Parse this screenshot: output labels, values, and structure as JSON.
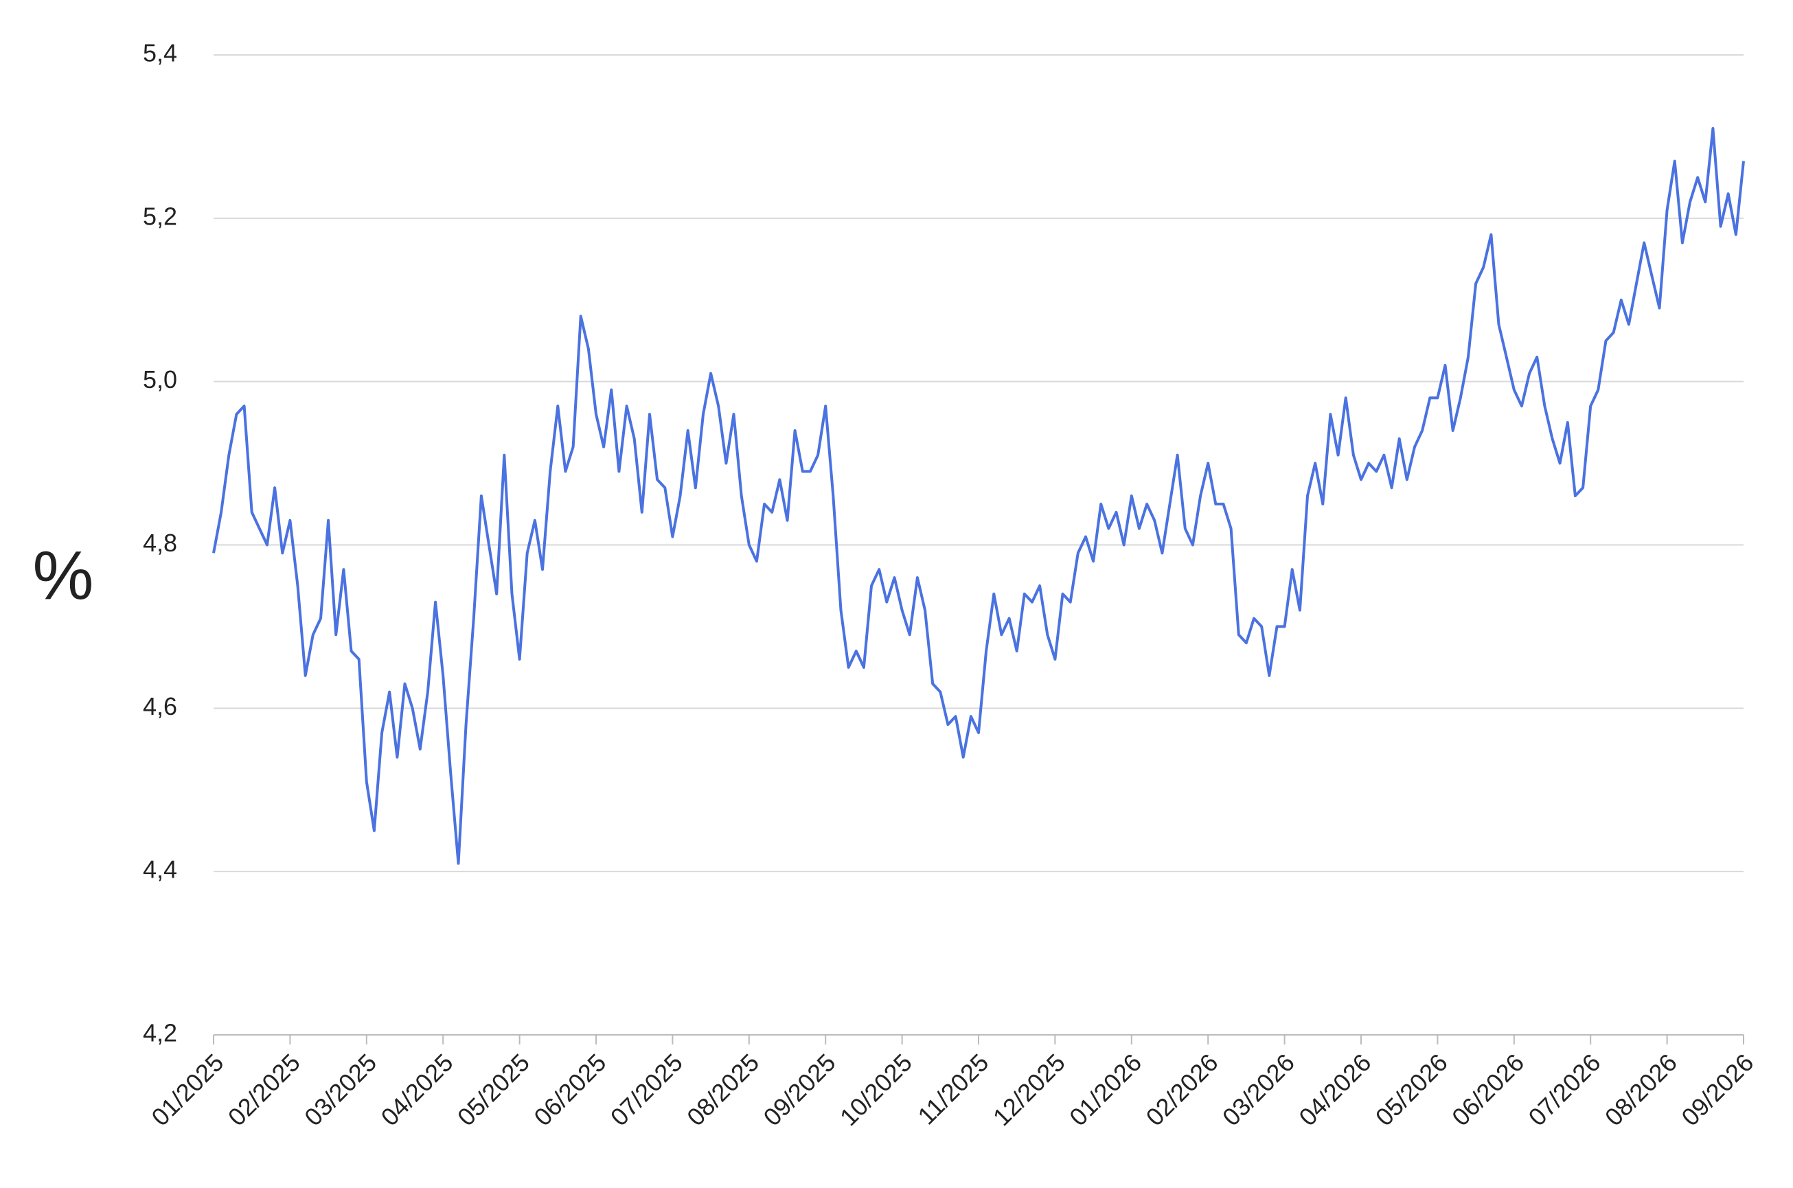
{
  "chart_data": {
    "type": "line",
    "ylabel": "%",
    "color": "#4a72e0",
    "grid": true,
    "ylim": [
      4.2,
      5.4
    ],
    "yticks": [
      {
        "value": 4.2,
        "label": "4,2"
      },
      {
        "value": 4.4,
        "label": "4,4"
      },
      {
        "value": 4.6,
        "label": "4,6"
      },
      {
        "value": 4.8,
        "label": "4,8"
      },
      {
        "value": 5.0,
        "label": "5,0"
      },
      {
        "value": 5.2,
        "label": "5,2"
      },
      {
        "value": 5.4,
        "label": "5,4"
      }
    ],
    "categories": [
      "01/2025",
      null,
      null,
      null,
      null,
      null,
      null,
      null,
      null,
      null,
      "02/2025",
      null,
      null,
      null,
      null,
      null,
      null,
      null,
      null,
      null,
      "03/2025",
      null,
      null,
      null,
      null,
      null,
      null,
      null,
      null,
      null,
      "04/2025",
      null,
      null,
      null,
      null,
      null,
      null,
      null,
      null,
      null,
      "05/2025",
      null,
      null,
      null,
      null,
      null,
      null,
      null,
      null,
      null,
      "06/2025",
      null,
      null,
      null,
      null,
      null,
      null,
      null,
      null,
      null,
      "07/2025",
      null,
      null,
      null,
      null,
      null,
      null,
      null,
      null,
      null,
      "08/2025",
      null,
      null,
      null,
      null,
      null,
      null,
      null,
      null,
      null,
      "09/2025",
      null,
      null,
      null,
      null,
      null,
      null,
      null,
      null,
      null,
      "10/2025",
      null,
      null,
      null,
      null,
      null,
      null,
      null,
      null,
      null,
      "11/2025",
      null,
      null,
      null,
      null,
      null,
      null,
      null,
      null,
      null,
      "12/2025",
      null,
      null,
      null,
      null,
      null,
      null,
      null,
      null,
      null,
      "01/2026",
      null,
      null,
      null,
      null,
      null,
      null,
      null,
      null,
      null,
      "02/2026",
      null,
      null,
      null,
      null,
      null,
      null,
      null,
      null,
      null,
      "03/2026",
      null,
      null,
      null,
      null,
      null,
      null,
      null,
      null,
      null,
      "04/2026",
      null,
      null,
      null,
      null,
      null,
      null,
      null,
      null,
      null,
      "05/2026",
      null,
      null,
      null,
      null,
      null,
      null,
      null,
      null,
      null,
      "06/2026",
      null,
      null,
      null,
      null,
      null,
      null,
      null,
      null,
      null,
      "07/2026",
      null,
      null,
      null,
      null,
      null,
      null,
      null,
      null,
      null,
      "08/2026",
      null,
      null,
      null,
      null,
      null,
      null,
      null,
      null,
      null,
      "09/2026"
    ],
    "values": [
      4.79,
      4.84,
      4.91,
      4.96,
      4.97,
      4.84,
      4.82,
      4.8,
      4.87,
      4.79,
      4.83,
      4.75,
      4.64,
      4.69,
      4.71,
      4.83,
      4.69,
      4.77,
      4.67,
      4.66,
      4.51,
      4.45,
      4.57,
      4.62,
      4.54,
      4.63,
      4.6,
      4.55,
      4.62,
      4.73,
      4.64,
      4.52,
      4.41,
      4.58,
      4.71,
      4.86,
      4.8,
      4.74,
      4.91,
      4.74,
      4.66,
      4.79,
      4.83,
      4.77,
      4.89,
      4.97,
      4.89,
      4.92,
      5.08,
      5.04,
      4.96,
      4.92,
      4.99,
      4.89,
      4.97,
      4.93,
      4.84,
      4.96,
      4.88,
      4.87,
      4.81,
      4.86,
      4.94,
      4.87,
      4.96,
      5.01,
      4.97,
      4.9,
      4.96,
      4.86,
      4.8,
      4.78,
      4.85,
      4.84,
      4.88,
      4.83,
      4.94,
      4.89,
      4.89,
      4.91,
      4.97,
      4.86,
      4.72,
      4.65,
      4.67,
      4.65,
      4.75,
      4.77,
      4.73,
      4.76,
      4.72,
      4.69,
      4.76,
      4.72,
      4.63,
      4.62,
      4.58,
      4.59,
      4.54,
      4.59,
      4.57,
      4.67,
      4.74,
      4.69,
      4.71,
      4.67,
      4.74,
      4.73,
      4.75,
      4.69,
      4.66,
      4.74,
      4.73,
      4.79,
      4.81,
      4.78,
      4.85,
      4.82,
      4.84,
      4.8,
      4.86,
      4.82,
      4.85,
      4.83,
      4.79,
      4.85,
      4.91,
      4.82,
      4.8,
      4.86,
      4.9,
      4.85,
      4.85,
      4.82,
      4.69,
      4.68,
      4.71,
      4.7,
      4.64,
      4.7,
      4.7,
      4.77,
      4.72,
      4.86,
      4.9,
      4.85,
      4.96,
      4.91,
      4.98,
      4.91,
      4.88,
      4.9,
      4.89,
      4.91,
      4.87,
      4.93,
      4.88,
      4.92,
      4.94,
      4.98,
      4.98,
      5.02,
      4.94,
      4.98,
      5.03,
      5.12,
      5.14,
      5.18,
      5.07,
      5.03,
      4.99,
      4.97,
      5.01,
      5.03,
      4.97,
      4.93,
      4.9,
      4.95,
      4.86,
      4.87,
      4.97,
      4.99,
      5.05,
      5.06,
      5.1,
      5.07,
      5.12,
      5.17,
      5.13,
      5.09,
      5.21,
      5.27,
      5.17,
      5.22,
      5.25,
      5.22,
      5.31,
      5.19,
      5.23,
      5.18,
      5.27
    ]
  }
}
